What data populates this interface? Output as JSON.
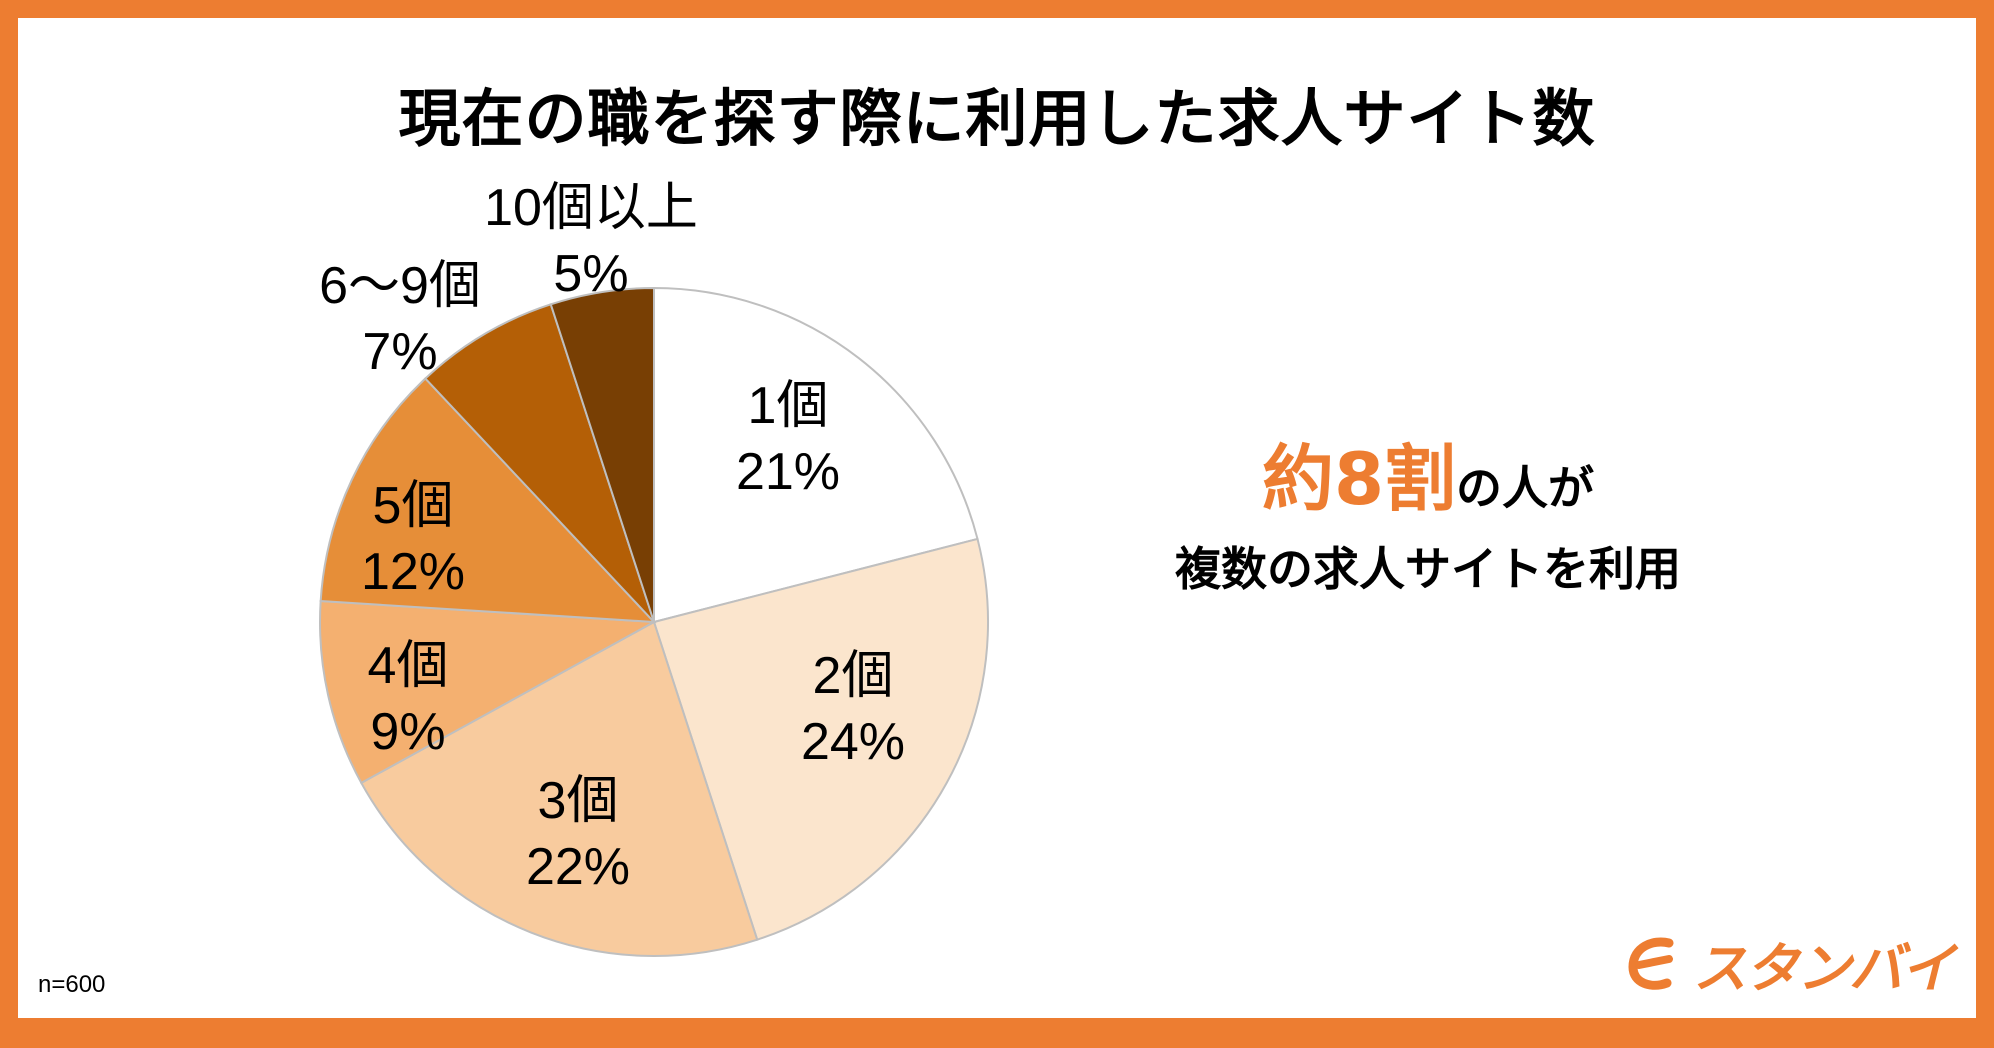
{
  "title": "現在の職を探す際に利用した求人サイト数",
  "chart_data": {
    "type": "pie",
    "title": "現在の職を探す際に利用した求人サイト数",
    "slices": [
      {
        "label": "1個",
        "value": 21,
        "value_label": "21%",
        "color": "#FFFFFF"
      },
      {
        "label": "2個",
        "value": 24,
        "value_label": "24%",
        "color": "#FBE5CD"
      },
      {
        "label": "3個",
        "value": 22,
        "value_label": "22%",
        "color": "#F8CB9E"
      },
      {
        "label": "4個",
        "value": 9,
        "value_label": "9%",
        "color": "#F4B070"
      },
      {
        "label": "5個",
        "value": 12,
        "value_label": "12%",
        "color": "#E68E38"
      },
      {
        "label": "6～9個",
        "value": 7,
        "value_label": "7%",
        "color": "#B45F06"
      },
      {
        "label": "10個以上",
        "value": 5,
        "value_label": "5%",
        "color": "#783F04"
      }
    ],
    "start": "12 o'clock",
    "direction": "clockwise"
  },
  "callout": {
    "highlight": "約8割",
    "line1_rest": "の人が",
    "line2": "複数の求人サイトを利用",
    "highlight_color": "#ED7D31"
  },
  "sample_note": "n=600",
  "logo": {
    "text": "スタンバイ",
    "color": "#ED7D31"
  },
  "colors": {
    "border": "#ED7D31",
    "background": "#FFFFFF"
  }
}
